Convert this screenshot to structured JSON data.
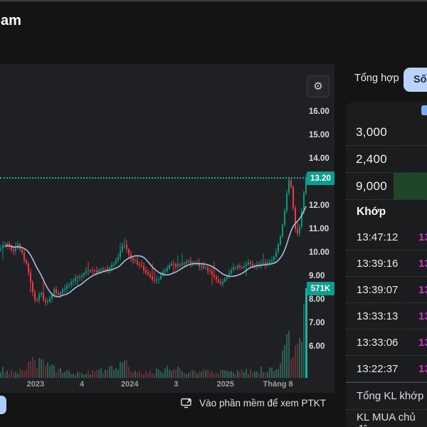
{
  "window": {
    "partial_title": "am"
  },
  "chart_panel": {
    "last_price_badge": "13.20",
    "volume_badge": "571K",
    "footer_link": "Vào phần mềm để xem PTKT",
    "colors": {
      "up": "#089981",
      "down": "#f23645",
      "badge": "#0f9d8f",
      "ma_line": "#a3c1dd",
      "dashed": "#1fa99a",
      "vol_up": "#2e5f55",
      "vol_down": "#5d3236",
      "vol_last": "#17b3a2"
    }
  },
  "chart_data": {
    "type": "candlestick",
    "title": "",
    "xlabel": "",
    "ylabel": "",
    "grid": false,
    "y_ticks": [
      "16.00",
      "15.00",
      "14.00",
      "13.00",
      "12.00",
      "11.00",
      "10.00",
      "9.00",
      "8.00",
      "7.00",
      "6.00"
    ],
    "y_range": [
      5.8,
      16.4
    ],
    "x_ticks": [
      {
        "label": "2023",
        "t": 0.115
      },
      {
        "label": "4",
        "t": 0.265
      },
      {
        "label": "2024",
        "t": 0.42
      },
      {
        "label": "3",
        "t": 0.57
      },
      {
        "label": "2025",
        "t": 0.73
      },
      {
        "label": "Tháng 8",
        "t": 0.9
      }
    ],
    "last_price": 13.2,
    "last_volume": "571K",
    "candle_count": 144,
    "close_keypoints": [
      [
        0.0,
        10.2
      ],
      [
        0.02,
        10.5
      ],
      [
        0.04,
        10.05
      ],
      [
        0.055,
        10.35
      ],
      [
        0.07,
        10.0
      ],
      [
        0.085,
        9.5
      ],
      [
        0.1,
        8.6
      ],
      [
        0.115,
        7.95
      ],
      [
        0.13,
        8.35
      ],
      [
        0.145,
        7.9
      ],
      [
        0.16,
        8.05
      ],
      [
        0.175,
        8.45
      ],
      [
        0.19,
        8.25
      ],
      [
        0.21,
        8.55
      ],
      [
        0.23,
        8.75
      ],
      [
        0.25,
        8.95
      ],
      [
        0.27,
        9.15
      ],
      [
        0.29,
        9.3
      ],
      [
        0.31,
        9.2
      ],
      [
        0.33,
        9.4
      ],
      [
        0.35,
        9.3
      ],
      [
        0.37,
        9.5
      ],
      [
        0.385,
        9.8
      ],
      [
        0.4,
        10.45
      ],
      [
        0.415,
        10.05
      ],
      [
        0.43,
        9.75
      ],
      [
        0.45,
        9.55
      ],
      [
        0.47,
        9.3
      ],
      [
        0.49,
        9.0
      ],
      [
        0.505,
        8.8
      ],
      [
        0.52,
        9.0
      ],
      [
        0.54,
        9.25
      ],
      [
        0.555,
        9.6
      ],
      [
        0.57,
        9.45
      ],
      [
        0.59,
        9.55
      ],
      [
        0.61,
        9.65
      ],
      [
        0.63,
        9.6
      ],
      [
        0.65,
        9.5
      ],
      [
        0.67,
        9.35
      ],
      [
        0.69,
        9.15
      ],
      [
        0.71,
        8.85
      ],
      [
        0.725,
        8.7
      ],
      [
        0.74,
        9.0
      ],
      [
        0.755,
        9.25
      ],
      [
        0.77,
        9.45
      ],
      [
        0.79,
        9.35
      ],
      [
        0.81,
        9.55
      ],
      [
        0.83,
        9.45
      ],
      [
        0.85,
        9.6
      ],
      [
        0.87,
        9.5
      ],
      [
        0.885,
        9.65
      ],
      [
        0.9,
        9.95
      ],
      [
        0.915,
        10.6
      ],
      [
        0.93,
        11.8
      ],
      [
        0.94,
        12.9
      ],
      [
        0.948,
        13.3
      ],
      [
        0.956,
        12.2
      ],
      [
        0.964,
        11.1
      ],
      [
        0.972,
        10.8
      ],
      [
        0.982,
        11.3
      ],
      [
        0.99,
        12.2
      ],
      [
        1.0,
        13.2
      ]
    ],
    "volume_keypoints": [
      [
        0.0,
        12
      ],
      [
        0.05,
        9
      ],
      [
        0.1,
        26
      ],
      [
        0.14,
        22
      ],
      [
        0.18,
        12
      ],
      [
        0.25,
        7
      ],
      [
        0.32,
        9
      ],
      [
        0.4,
        22
      ],
      [
        0.45,
        8
      ],
      [
        0.5,
        10
      ],
      [
        0.56,
        15
      ],
      [
        0.62,
        8
      ],
      [
        0.7,
        10
      ],
      [
        0.76,
        8
      ],
      [
        0.83,
        10
      ],
      [
        0.9,
        16
      ],
      [
        0.93,
        42
      ],
      [
        0.95,
        55
      ],
      [
        0.97,
        36
      ],
      [
        0.99,
        64
      ],
      [
        1.0,
        126
      ]
    ]
  },
  "right_panel": {
    "tabs": [
      {
        "label": "Tổng hợp",
        "active": false
      },
      {
        "label": "Số",
        "active": true
      }
    ],
    "order_book": {
      "rows": [
        "3,000",
        "2,400",
        "9,000"
      ],
      "highlight_row": 2,
      "highlight_color": "#1e4a28"
    },
    "trades": {
      "header": "Khớp",
      "price_color": "#d02fd0",
      "rows": [
        {
          "time": "13:47:12",
          "price": "13"
        },
        {
          "time": "13:39:16",
          "price": "13"
        },
        {
          "time": "13:39:07",
          "price": "13"
        },
        {
          "time": "13:33:13",
          "price": "13"
        },
        {
          "time": "13:33:06",
          "price": "13"
        },
        {
          "time": "13:22:37",
          "price": "13"
        }
      ]
    },
    "footer_rows": [
      "Tổng KL khớp",
      "KL MUA chủ động"
    ]
  }
}
